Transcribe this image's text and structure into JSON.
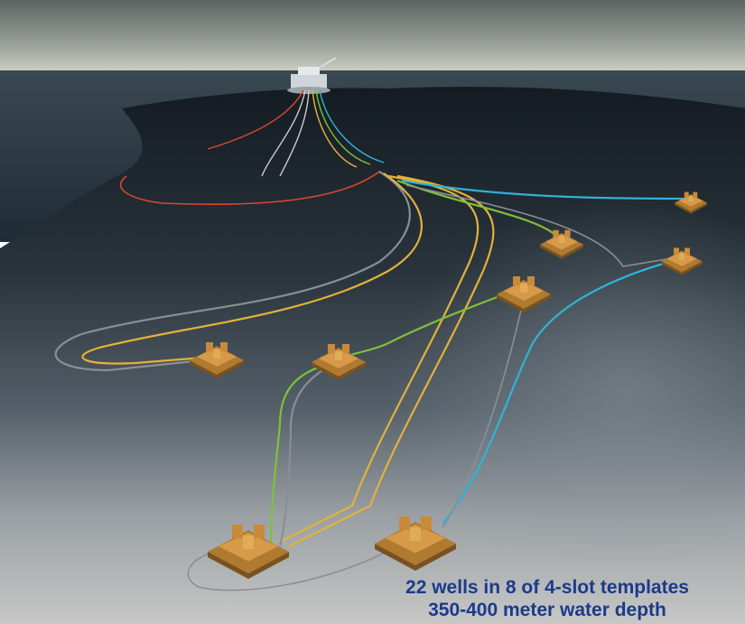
{
  "image": {
    "subject": "subsea field layout",
    "caption": {
      "line1": "22 wells in 8 of 4-slot templates",
      "line2": "350-400 meter water depth"
    },
    "colors": {
      "caption": "#1b3a8c",
      "template": "#c98a3a",
      "flowline_yellow": "#e2b23a",
      "flowline_green": "#7fc13a",
      "flowline_cyan": "#2fb3d8",
      "flowline_red": "#d9472f",
      "flowline_grey": "#8a8f95"
    }
  }
}
